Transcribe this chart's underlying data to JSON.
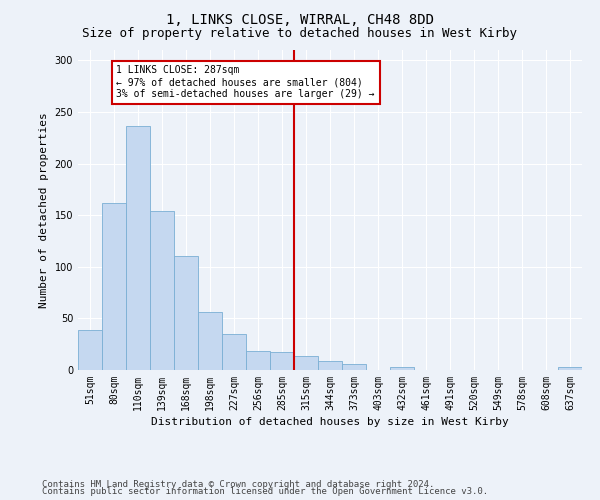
{
  "title1": "1, LINKS CLOSE, WIRRAL, CH48 8DD",
  "title2": "Size of property relative to detached houses in West Kirby",
  "xlabel": "Distribution of detached houses by size in West Kirby",
  "ylabel": "Number of detached properties",
  "categories": [
    "51sqm",
    "80sqm",
    "110sqm",
    "139sqm",
    "168sqm",
    "198sqm",
    "227sqm",
    "256sqm",
    "285sqm",
    "315sqm",
    "344sqm",
    "373sqm",
    "403sqm",
    "432sqm",
    "461sqm",
    "491sqm",
    "520sqm",
    "549sqm",
    "578sqm",
    "608sqm",
    "637sqm"
  ],
  "values": [
    39,
    162,
    236,
    154,
    110,
    56,
    35,
    18,
    17,
    14,
    9,
    6,
    0,
    3,
    0,
    0,
    0,
    0,
    0,
    0,
    3
  ],
  "bar_color": "#c5d8f0",
  "bar_edge_color": "#7aafd4",
  "vline_color": "#cc0000",
  "annotation_line1": "1 LINKS CLOSE: 287sqm",
  "annotation_line2": "← 97% of detached houses are smaller (804)",
  "annotation_line3": "3% of semi-detached houses are larger (29) →",
  "annotation_box_facecolor": "#ffffff",
  "annotation_box_edgecolor": "#cc0000",
  "ylim": [
    0,
    310
  ],
  "yticks": [
    0,
    50,
    100,
    150,
    200,
    250,
    300
  ],
  "background_color": "#edf2f9",
  "grid_color": "#ffffff",
  "footer1": "Contains HM Land Registry data © Crown copyright and database right 2024.",
  "footer2": "Contains public sector information licensed under the Open Government Licence v3.0.",
  "title1_fontsize": 10,
  "title2_fontsize": 9,
  "xlabel_fontsize": 8,
  "ylabel_fontsize": 8,
  "tick_fontsize": 7,
  "annotation_fontsize": 7,
  "footer_fontsize": 6.5
}
